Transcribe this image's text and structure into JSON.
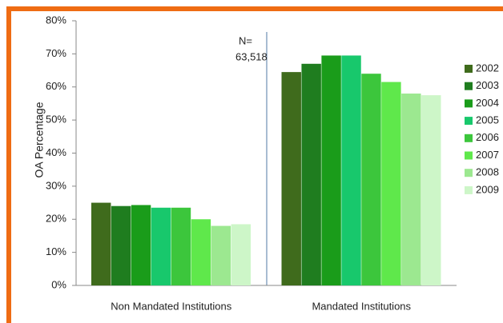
{
  "chart_data": {
    "type": "bar",
    "y_label": "OA Percentage",
    "categories": [
      "Non Mandated Institutions",
      "Mandated Institutions"
    ],
    "series": [
      {
        "name": "2002",
        "color": "#3f6b1c",
        "values": [
          25,
          64.5
        ]
      },
      {
        "name": "2003",
        "color": "#1f7d1f",
        "values": [
          24,
          67
        ]
      },
      {
        "name": "2004",
        "color": "#1a9c1a",
        "values": [
          24.3,
          69.5
        ]
      },
      {
        "name": "2005",
        "color": "#18c86c",
        "values": [
          23.5,
          69.5
        ]
      },
      {
        "name": "2006",
        "color": "#3cc63c",
        "values": [
          23.5,
          64
        ]
      },
      {
        "name": "2007",
        "color": "#5fe84b",
        "values": [
          20,
          61.5
        ]
      },
      {
        "name": "2008",
        "color": "#9ce890",
        "values": [
          18,
          58
        ]
      },
      {
        "name": "2009",
        "color": "#cdf6c8",
        "values": [
          18.5,
          57.5
        ]
      }
    ],
    "annotations": [
      "N=",
      "63,518"
    ],
    "ylim": [
      0,
      80
    ],
    "yticks": [
      {
        "value": 0,
        "label": "0%"
      },
      {
        "value": 10,
        "label": "10%"
      },
      {
        "value": 20,
        "label": "20%"
      },
      {
        "value": 30,
        "label": "30%"
      },
      {
        "value": 40,
        "label": "40%"
      },
      {
        "value": 50,
        "label": "50%"
      },
      {
        "value": 60,
        "label": "60%"
      },
      {
        "value": 70,
        "label": "70%"
      },
      {
        "value": 80,
        "label": "80%"
      }
    ],
    "grid": false,
    "legend": "right"
  }
}
